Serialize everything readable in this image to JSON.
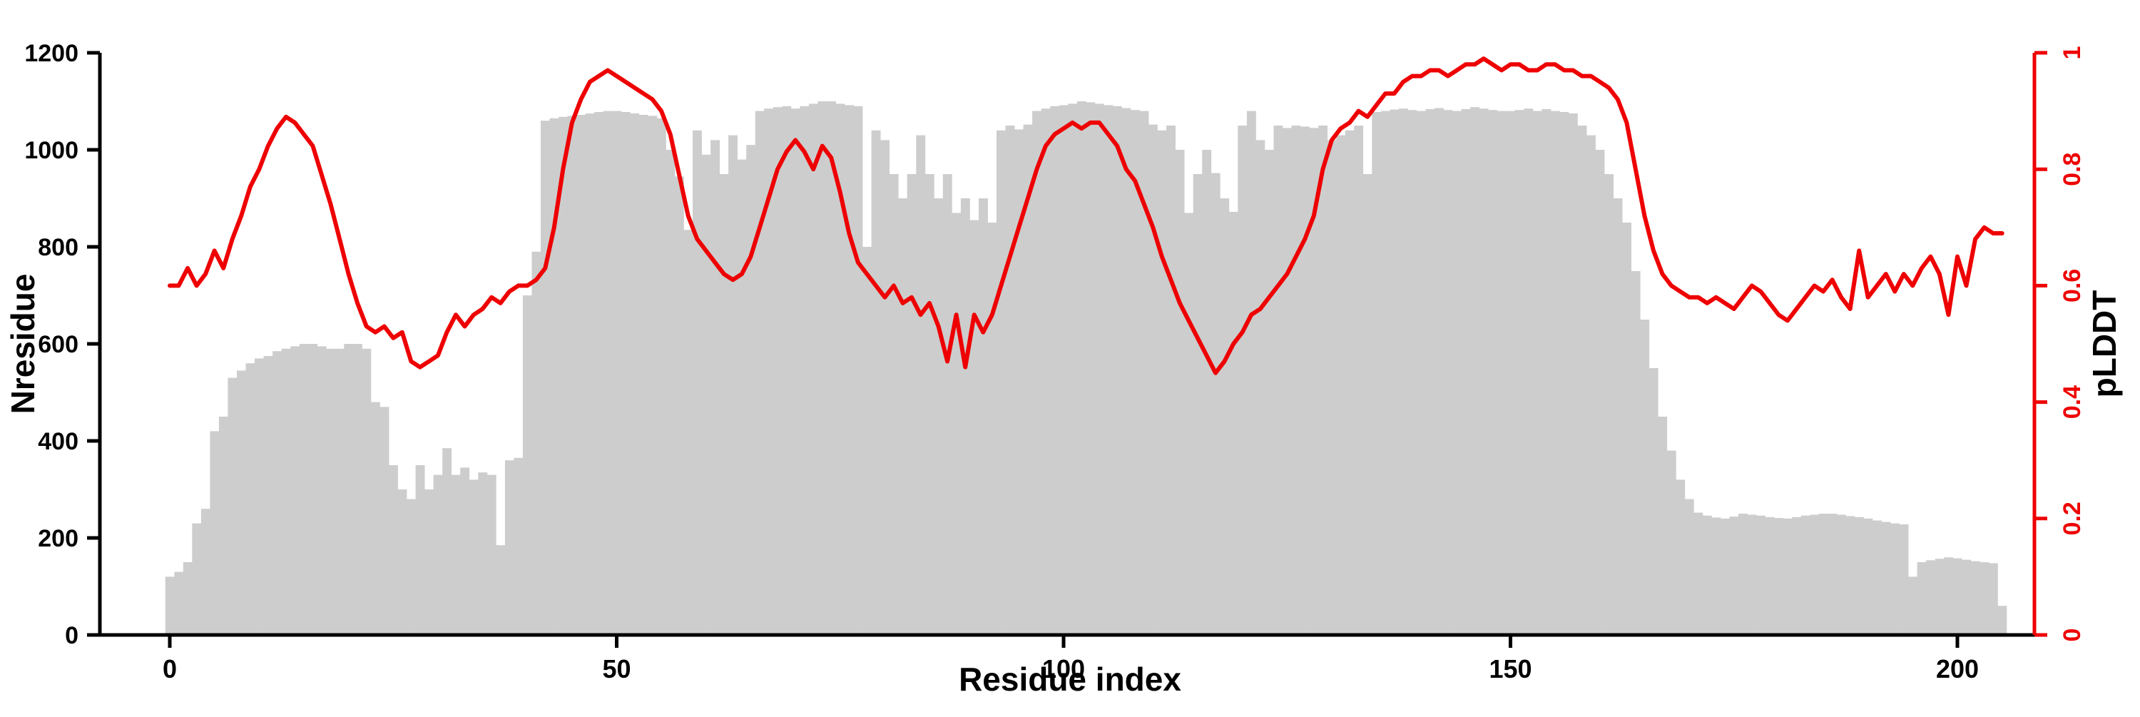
{
  "chart_data": {
    "type": "bar",
    "title": "",
    "xlabel": "Residue index",
    "ylabel_left": "Nresidue",
    "ylabel_right": "pLDDT",
    "x_ticks": [
      0,
      50,
      100,
      150,
      200
    ],
    "left_ticks": [
      0,
      200,
      400,
      600,
      800,
      1000,
      1200
    ],
    "right_ticks": [
      0,
      0.2,
      0.4,
      0.6,
      0.8,
      1
    ],
    "x_range": [
      0,
      206
    ],
    "left_range": [
      0,
      1200
    ],
    "right_range": [
      0,
      1
    ],
    "grid": false,
    "legend": "none",
    "bar_color": "#cdcdcd",
    "line_color": "#ee0000",
    "axis_color": "#000000",
    "series": [
      {
        "name": "Nresidue",
        "type": "bar",
        "axis": "left",
        "values": [
          120,
          130,
          150,
          230,
          260,
          420,
          450,
          530,
          545,
          560,
          570,
          575,
          585,
          590,
          595,
          600,
          600,
          595,
          590,
          590,
          600,
          600,
          590,
          480,
          470,
          350,
          300,
          280,
          350,
          300,
          330,
          385,
          330,
          345,
          320,
          335,
          330,
          185,
          360,
          365,
          700,
          790,
          1060,
          1065,
          1068,
          1070,
          1072,
          1075,
          1078,
          1080,
          1080,
          1078,
          1075,
          1072,
          1070,
          1065,
          1000,
          945,
          835,
          1040,
          990,
          1020,
          950,
          1030,
          980,
          1010,
          1080,
          1085,
          1088,
          1090,
          1085,
          1090,
          1095,
          1100,
          1100,
          1095,
          1092,
          1090,
          800,
          1040,
          1020,
          950,
          900,
          950,
          1030,
          950,
          900,
          950,
          870,
          900,
          855,
          900,
          850,
          1040,
          1050,
          1042,
          1052,
          1080,
          1085,
          1090,
          1092,
          1095,
          1100,
          1098,
          1095,
          1092,
          1090,
          1086,
          1082,
          1080,
          1052,
          1040,
          1050,
          1000,
          870,
          950,
          1000,
          952,
          900,
          872,
          1050,
          1080,
          1020,
          1000,
          1050,
          1045,
          1050,
          1048,
          1045,
          1050,
          1020,
          1030,
          1040,
          1050,
          950,
          1078,
          1080,
          1083,
          1085,
          1082,
          1080,
          1084,
          1086,
          1082,
          1080,
          1084,
          1088,
          1085,
          1082,
          1080,
          1080,
          1082,
          1085,
          1080,
          1084,
          1080,
          1078,
          1075,
          1050,
          1030,
          1000,
          950,
          900,
          850,
          750,
          650,
          550,
          450,
          380,
          320,
          280,
          252,
          246,
          242,
          240,
          244,
          250,
          248,
          246,
          243,
          241,
          240,
          243,
          246,
          248,
          250,
          250,
          248,
          245,
          243,
          240,
          236,
          233,
          230,
          228,
          120,
          150,
          154,
          157,
          160,
          158,
          155,
          152,
          150,
          148,
          60
        ]
      },
      {
        "name": "pLDDT",
        "type": "line",
        "axis": "right",
        "values": [
          0.6,
          0.6,
          0.63,
          0.6,
          0.62,
          0.66,
          0.63,
          0.68,
          0.72,
          0.77,
          0.8,
          0.84,
          0.87,
          0.89,
          0.88,
          0.86,
          0.84,
          0.79,
          0.74,
          0.68,
          0.62,
          0.57,
          0.53,
          0.52,
          0.53,
          0.51,
          0.52,
          0.47,
          0.46,
          0.47,
          0.48,
          0.52,
          0.55,
          0.53,
          0.55,
          0.56,
          0.58,
          0.57,
          0.59,
          0.6,
          0.6,
          0.61,
          0.63,
          0.7,
          0.8,
          0.88,
          0.92,
          0.95,
          0.96,
          0.97,
          0.96,
          0.95,
          0.94,
          0.93,
          0.92,
          0.9,
          0.86,
          0.79,
          0.72,
          0.68,
          0.66,
          0.64,
          0.62,
          0.61,
          0.62,
          0.65,
          0.7,
          0.75,
          0.8,
          0.83,
          0.85,
          0.83,
          0.8,
          0.84,
          0.82,
          0.76,
          0.69,
          0.64,
          0.62,
          0.6,
          0.58,
          0.6,
          0.57,
          0.58,
          0.55,
          0.57,
          0.53,
          0.47,
          0.55,
          0.46,
          0.55,
          0.52,
          0.55,
          0.6,
          0.65,
          0.7,
          0.75,
          0.8,
          0.84,
          0.86,
          0.87,
          0.88,
          0.87,
          0.88,
          0.88,
          0.86,
          0.84,
          0.8,
          0.78,
          0.74,
          0.7,
          0.65,
          0.61,
          0.57,
          0.54,
          0.51,
          0.48,
          0.45,
          0.47,
          0.5,
          0.52,
          0.55,
          0.56,
          0.58,
          0.6,
          0.62,
          0.65,
          0.68,
          0.72,
          0.8,
          0.85,
          0.87,
          0.88,
          0.9,
          0.89,
          0.91,
          0.93,
          0.93,
          0.95,
          0.96,
          0.96,
          0.97,
          0.97,
          0.96,
          0.97,
          0.98,
          0.98,
          0.99,
          0.98,
          0.97,
          0.98,
          0.98,
          0.97,
          0.97,
          0.98,
          0.98,
          0.97,
          0.97,
          0.96,
          0.96,
          0.95,
          0.94,
          0.92,
          0.88,
          0.8,
          0.72,
          0.66,
          0.62,
          0.6,
          0.59,
          0.58,
          0.58,
          0.57,
          0.58,
          0.57,
          0.56,
          0.58,
          0.6,
          0.59,
          0.57,
          0.55,
          0.54,
          0.56,
          0.58,
          0.6,
          0.59,
          0.61,
          0.58,
          0.56,
          0.66,
          0.58,
          0.6,
          0.62,
          0.59,
          0.62,
          0.6,
          0.63,
          0.65,
          0.62,
          0.55,
          0.65,
          0.6,
          0.68,
          0.7,
          0.69,
          0.69
        ]
      }
    ]
  }
}
